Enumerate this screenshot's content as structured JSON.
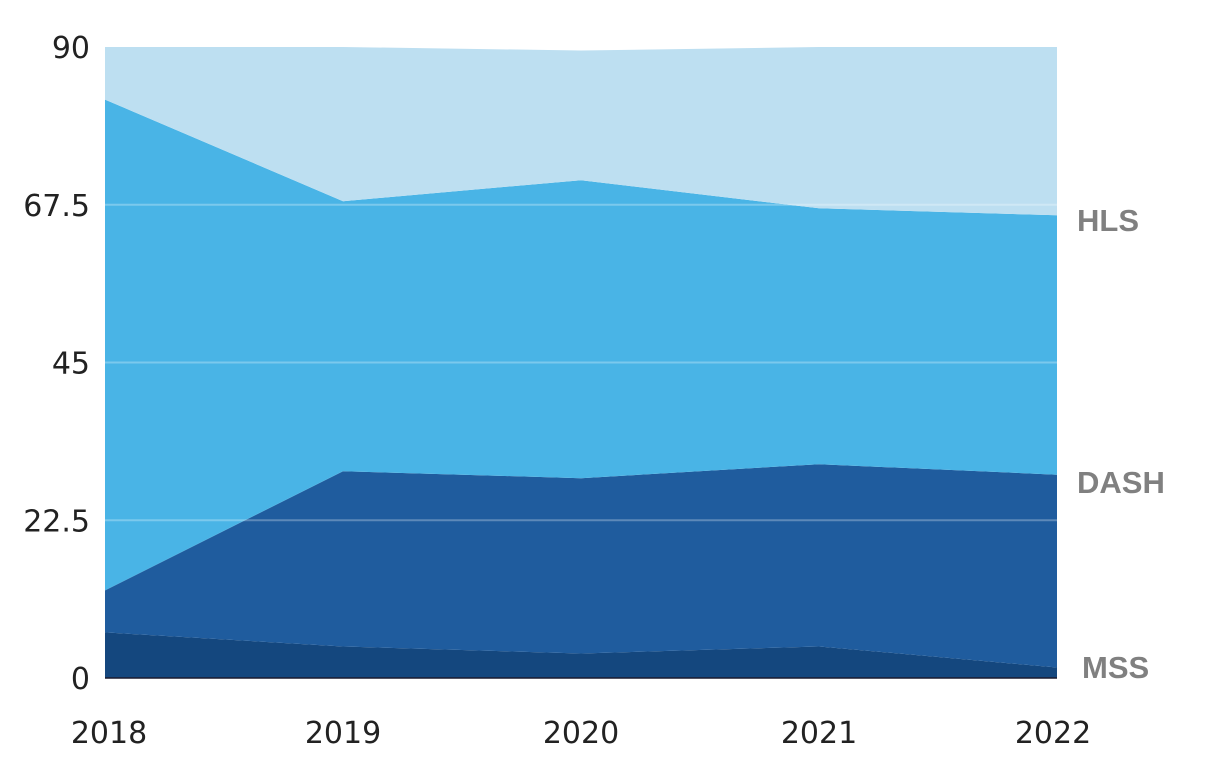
{
  "chart_data": {
    "type": "area",
    "stacked": true,
    "categories": [
      "2018",
      "2019",
      "2020",
      "2021",
      "2022"
    ],
    "ylim": [
      0,
      90
    ],
    "yticks": [
      "0",
      "22.5",
      "45",
      "67.5",
      "90"
    ],
    "grid": true,
    "series": [
      {
        "name": "MSS",
        "values": [
          6.5,
          4.5,
          3.5,
          4.5,
          1.5
        ],
        "color": "#14477e"
      },
      {
        "name": "DASH",
        "values": [
          6,
          25,
          25,
          26,
          27.5
        ],
        "color": "#1f5c9e"
      },
      {
        "name": "HLS",
        "values": [
          70,
          38.5,
          42.5,
          36.5,
          37
        ],
        "color": "#49b4e6"
      },
      {
        "name": "",
        "values": [
          7.5,
          22,
          18.5,
          23,
          24
        ],
        "color": "#bddff1"
      }
    ],
    "labels": {
      "hls": "HLS",
      "dash": "DASH",
      "mss": "MSS"
    }
  }
}
